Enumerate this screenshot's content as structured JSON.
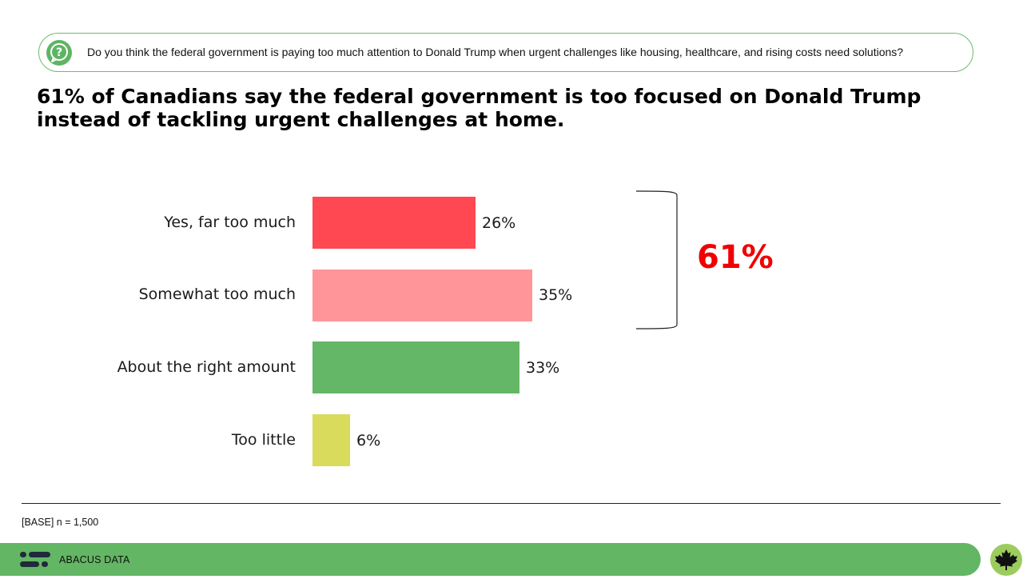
{
  "question": "Do you think the federal government is paying too much attention to Donald Trump when urgent challenges like housing, healthcare, and rising costs need solutions?",
  "headline": "61% of Canadians say the federal government is too focused on Donald Trump instead of tackling urgent challenges at home.",
  "chart_data": {
    "type": "bar",
    "orientation": "horizontal",
    "categories": [
      "Yes, far too much",
      "Somewhat too much",
      "About the right amount",
      "Too little"
    ],
    "values": [
      26,
      35,
      33,
      6
    ],
    "value_labels": [
      "26%",
      "35%",
      "33%",
      "6%"
    ],
    "colors": [
      "#ff4852",
      "#ff9598",
      "#63b766",
      "#d9db5d"
    ],
    "grid": false,
    "annotation": {
      "label": "61%",
      "spans": [
        "Yes, far too much",
        "Somewhat too much"
      ],
      "color": "#f00000"
    }
  },
  "base_note": "[BASE] n = 1,500",
  "brand": "ABACUS DATA",
  "icons": {
    "question": "question-bubble-icon",
    "logo": "abacus-logo-icon",
    "maple": "maple-leaf-icon"
  }
}
